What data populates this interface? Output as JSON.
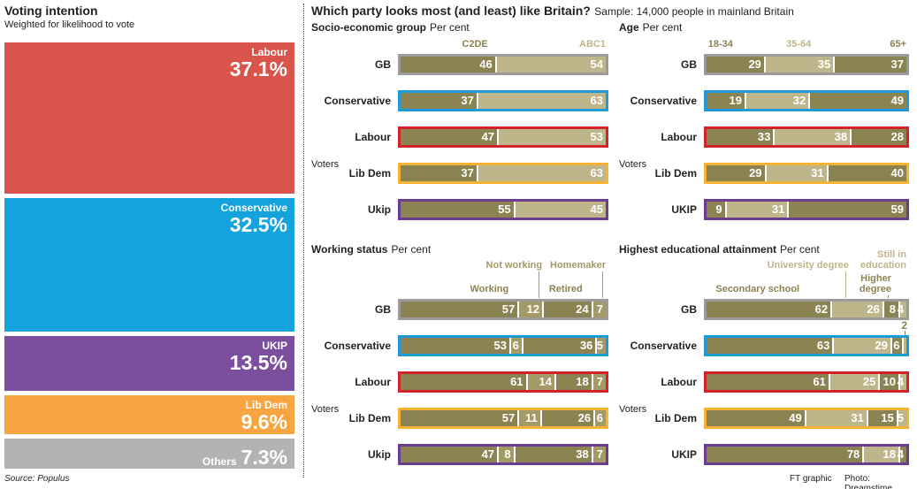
{
  "header": {
    "title": "Which party looks most (and least) like Britain?",
    "note": "Sample: 14,000 people in mainland Britain"
  },
  "footer": {
    "source": "Source: Populus",
    "credit": "FT graphic",
    "photo": "Photo: Dreamstime"
  },
  "chart_data": [
    {
      "type": "stacked_column",
      "title": "Voting intention",
      "subtitle": "Weighted for likelihood to vote",
      "categories": [
        "Labour",
        "Conservative",
        "UKIP",
        "Lib Dem",
        "Others"
      ],
      "values": [
        37.1,
        32.5,
        13.5,
        9.6,
        7.3
      ],
      "value_labels": [
        "37.1%",
        "32.5%",
        "13.5%",
        "9.6%",
        "7.3%"
      ],
      "colors": [
        "#d9544b",
        "#14a3dc",
        "#7b4f9d",
        "#f6a540",
        "#b3b3b3"
      ]
    },
    {
      "type": "stacked_bar",
      "title": "Socio-economic group",
      "subtitle": "Per cent",
      "y_label": "Voters",
      "categories": [
        "GB",
        "Conservative",
        "Labour",
        "Lib Dem",
        "Ukip"
      ],
      "category_colors": [
        "#9b9b9b",
        "#1e9bd7",
        "#d2232a",
        "#f6b333",
        "#6a3d91"
      ],
      "series": [
        {
          "name": "C2DE",
          "color": "#8c8353",
          "values": [
            46,
            37,
            47,
            37,
            55
          ]
        },
        {
          "name": "ABC1",
          "color": "#bfb58b",
          "values": [
            54,
            63,
            53,
            63,
            45
          ]
        }
      ]
    },
    {
      "type": "stacked_bar",
      "title": "Age",
      "subtitle": "Per cent",
      "y_label": "Voters",
      "categories": [
        "GB",
        "Conservative",
        "Labour",
        "Lib Dem",
        "UKIP"
      ],
      "category_colors": [
        "#9b9b9b",
        "#1e9bd7",
        "#d2232a",
        "#f6b333",
        "#6a3d91"
      ],
      "series": [
        {
          "name": "18-34",
          "color": "#8c8353",
          "values": [
            29,
            19,
            33,
            29,
            9
          ]
        },
        {
          "name": "35-64",
          "color": "#bfb58b",
          "values": [
            35,
            32,
            38,
            31,
            31
          ]
        },
        {
          "name": "65+",
          "color": "#8c8353",
          "values": [
            37,
            49,
            28,
            40,
            59
          ]
        }
      ]
    },
    {
      "type": "stacked_bar",
      "title": "Working status",
      "subtitle": "Per cent",
      "y_label": "Voters",
      "categories": [
        "GB",
        "Conservative",
        "Labour",
        "Lib Dem",
        "Ukip"
      ],
      "category_colors": [
        "#9b9b9b",
        "#1e9bd7",
        "#d2232a",
        "#f6b333",
        "#6a3d91"
      ],
      "series": [
        {
          "name": "Working",
          "color": "#8c8353",
          "values": [
            57,
            53,
            61,
            57,
            47
          ]
        },
        {
          "name": "Not working",
          "color": "#a39a68",
          "values": [
            12,
            6,
            14,
            11,
            8
          ]
        },
        {
          "name": "Retired",
          "color": "#8c8353",
          "values": [
            24,
            36,
            18,
            26,
            38
          ]
        },
        {
          "name": "Homemaker",
          "color": "#a39a68",
          "values": [
            7,
            5,
            7,
            6,
            7
          ]
        }
      ]
    },
    {
      "type": "stacked_bar",
      "title": "Highest educational attainment",
      "subtitle": "Per cent",
      "y_label": "Voters",
      "categories": [
        "GB",
        "Conservative",
        "Labour",
        "Lib Dem",
        "UKIP"
      ],
      "category_colors": [
        "#9b9b9b",
        "#1e9bd7",
        "#d2232a",
        "#f6b333",
        "#6a3d91"
      ],
      "series": [
        {
          "name": "Secondary school",
          "color": "#8c8353",
          "values": [
            62,
            63,
            61,
            49,
            78
          ]
        },
        {
          "name": "University degree",
          "color": "#bfb58b",
          "values": [
            26,
            29,
            25,
            31,
            18
          ]
        },
        {
          "name": "Higher degree",
          "color": "#8c8353",
          "values": [
            8,
            6,
            10,
            15,
            4
          ]
        },
        {
          "name": "Still in education",
          "color": "#bfb58b",
          "values": [
            4,
            2,
            4,
            5,
            null
          ]
        }
      ]
    }
  ]
}
